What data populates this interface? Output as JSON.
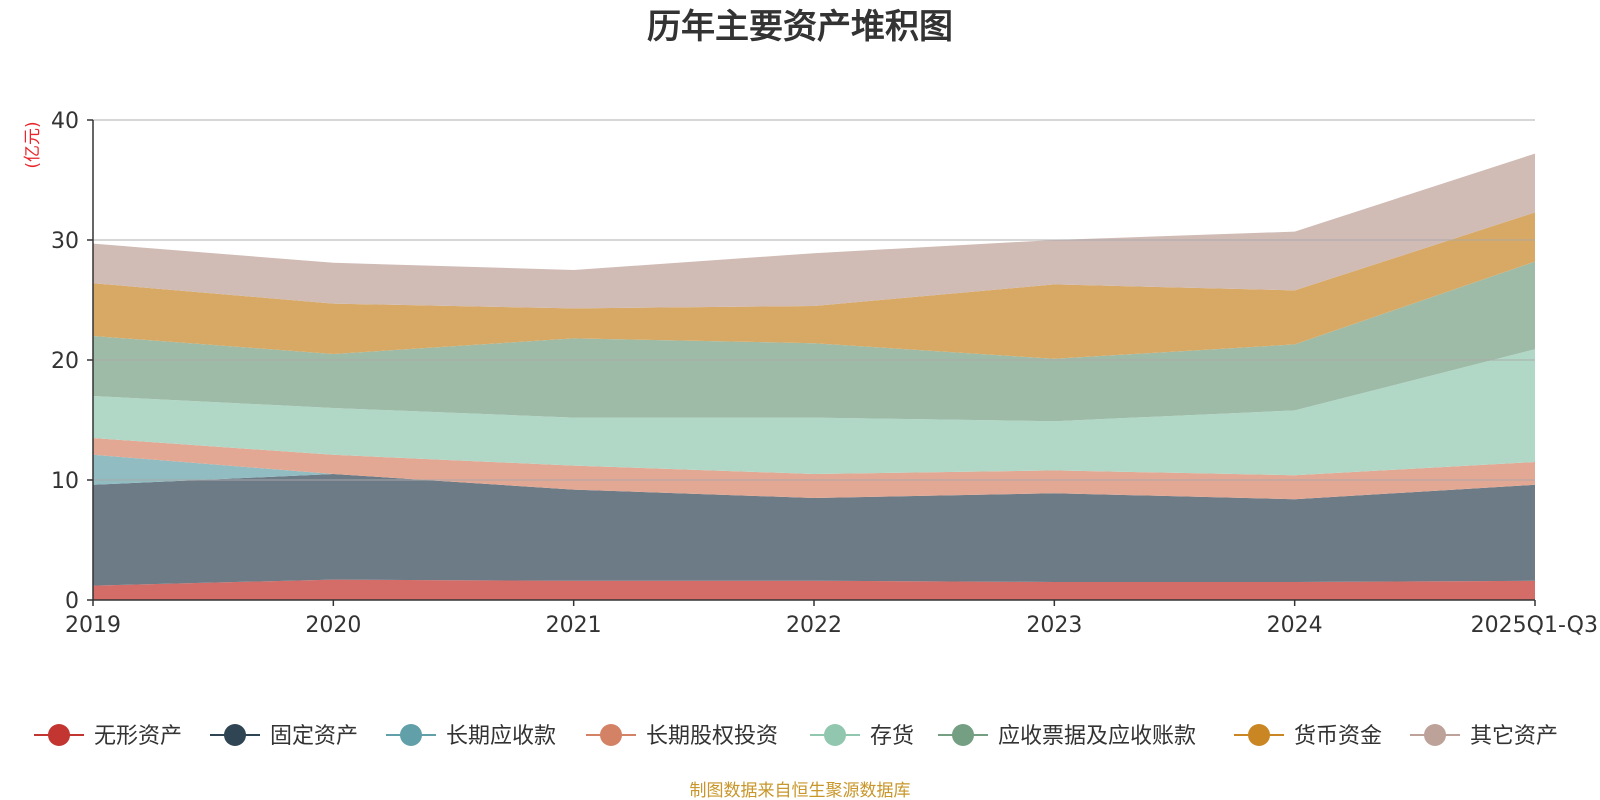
{
  "chart_data": {
    "type": "area",
    "stacked": true,
    "title": "历年主要资产堆积图",
    "ylabel": "(亿元)",
    "xlabel": "",
    "categories": [
      "2019",
      "2020",
      "2021",
      "2022",
      "2023",
      "2024",
      "2025Q1-Q3"
    ],
    "ylim": [
      0,
      40
    ],
    "yticks": [
      0,
      10,
      20,
      30,
      40
    ],
    "grid": true,
    "legend_position": "bottom",
    "series": [
      {
        "name": "无形资产",
        "color": "#c23531",
        "fill": "#d46d68",
        "values": [
          1.2,
          1.7,
          1.6,
          1.6,
          1.5,
          1.5,
          1.6
        ]
      },
      {
        "name": "固定资产",
        "color": "#2f4554",
        "fill": "#6d7b87",
        "values": [
          8.4,
          8.8,
          7.6,
          6.9,
          7.4,
          6.9,
          8.0
        ]
      },
      {
        "name": "长期应收款",
        "color": "#61a0a8",
        "fill": "#90bcc2",
        "values": [
          2.5,
          0.0,
          0.0,
          0.0,
          0.0,
          0.0,
          0.0
        ]
      },
      {
        "name": "长期股权投资",
        "color": "#d48265",
        "fill": "#e2a893",
        "values": [
          1.4,
          1.6,
          2.0,
          2.0,
          1.9,
          2.0,
          1.9
        ]
      },
      {
        "name": "存货",
        "color": "#91c7ae",
        "fill": "#b1d8c6",
        "values": [
          3.5,
          3.9,
          4.0,
          4.7,
          4.1,
          5.4,
          9.4
        ]
      },
      {
        "name": "应收票据及应收账款",
        "color": "#749f83",
        "fill": "#9ebba8",
        "values": [
          5.0,
          4.5,
          6.6,
          6.2,
          5.2,
          5.5,
          7.3
        ]
      },
      {
        "name": "货币资金",
        "color": "#ca8622",
        "fill": "#d8a964",
        "values": [
          4.4,
          4.2,
          2.5,
          3.1,
          6.2,
          4.5,
          4.1
        ]
      },
      {
        "name": "其它资产",
        "color": "#bda29a",
        "fill": "#d0bbb5",
        "values": [
          3.3,
          3.4,
          3.2,
          4.4,
          3.7,
          4.9,
          4.9
        ]
      }
    ]
  },
  "footer": {
    "source_text": "制图数据来自恒生聚源数据库"
  }
}
